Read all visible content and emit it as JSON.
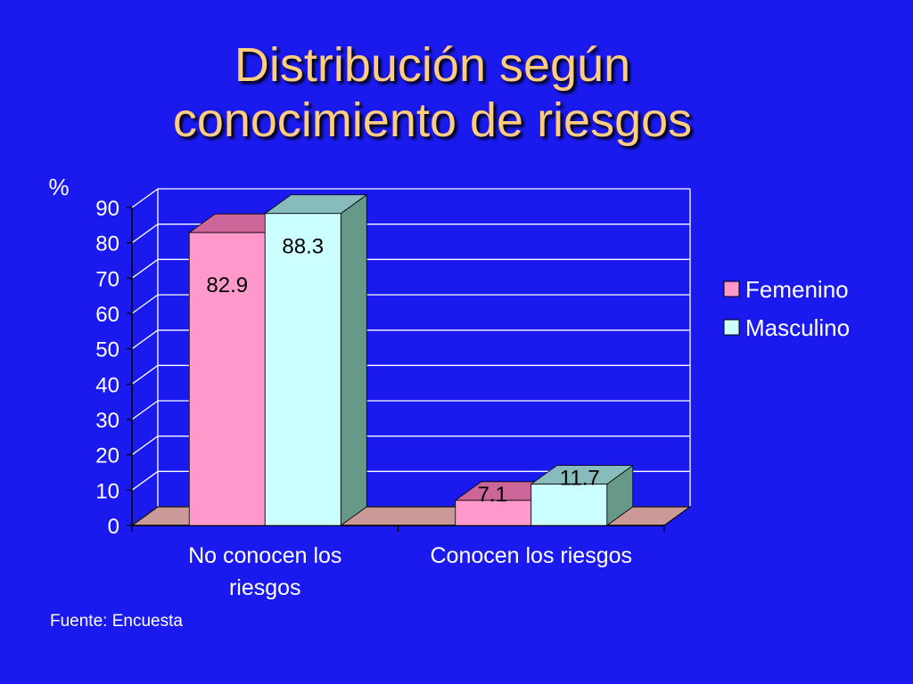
{
  "slide": {
    "title_line1": "Distribución según",
    "title_line2": "conocimiento de riesgos",
    "source": "Fuente: Encuesta"
  },
  "colors": {
    "background": "#1a1aef",
    "title": "#ffcc80",
    "femenino": "#ff99cc",
    "masculino": "#ccffff",
    "floor": "#cc9999",
    "grid": "#ffffff"
  },
  "chart_data": {
    "type": "bar",
    "ylabel": "%",
    "xlabel": "",
    "ylim": [
      0,
      90
    ],
    "yticks": [
      0,
      10,
      20,
      30,
      40,
      50,
      60,
      70,
      80,
      90
    ],
    "categories": [
      "No conocen los riesgos",
      "Conocen los riesgos"
    ],
    "category_lines": [
      [
        "No conocen los",
        "riesgos"
      ],
      [
        "Conocen los riesgos"
      ]
    ],
    "series": [
      {
        "name": "Femenino",
        "values": [
          82.9,
          7.1
        ],
        "labels": [
          "82.9",
          "7.1"
        ]
      },
      {
        "name": "Masculino",
        "values": [
          88.3,
          11.7
        ],
        "labels": [
          "88.3",
          "11.7"
        ]
      }
    ],
    "legend_position": "right",
    "grid": true,
    "style": "3d-clustered"
  }
}
